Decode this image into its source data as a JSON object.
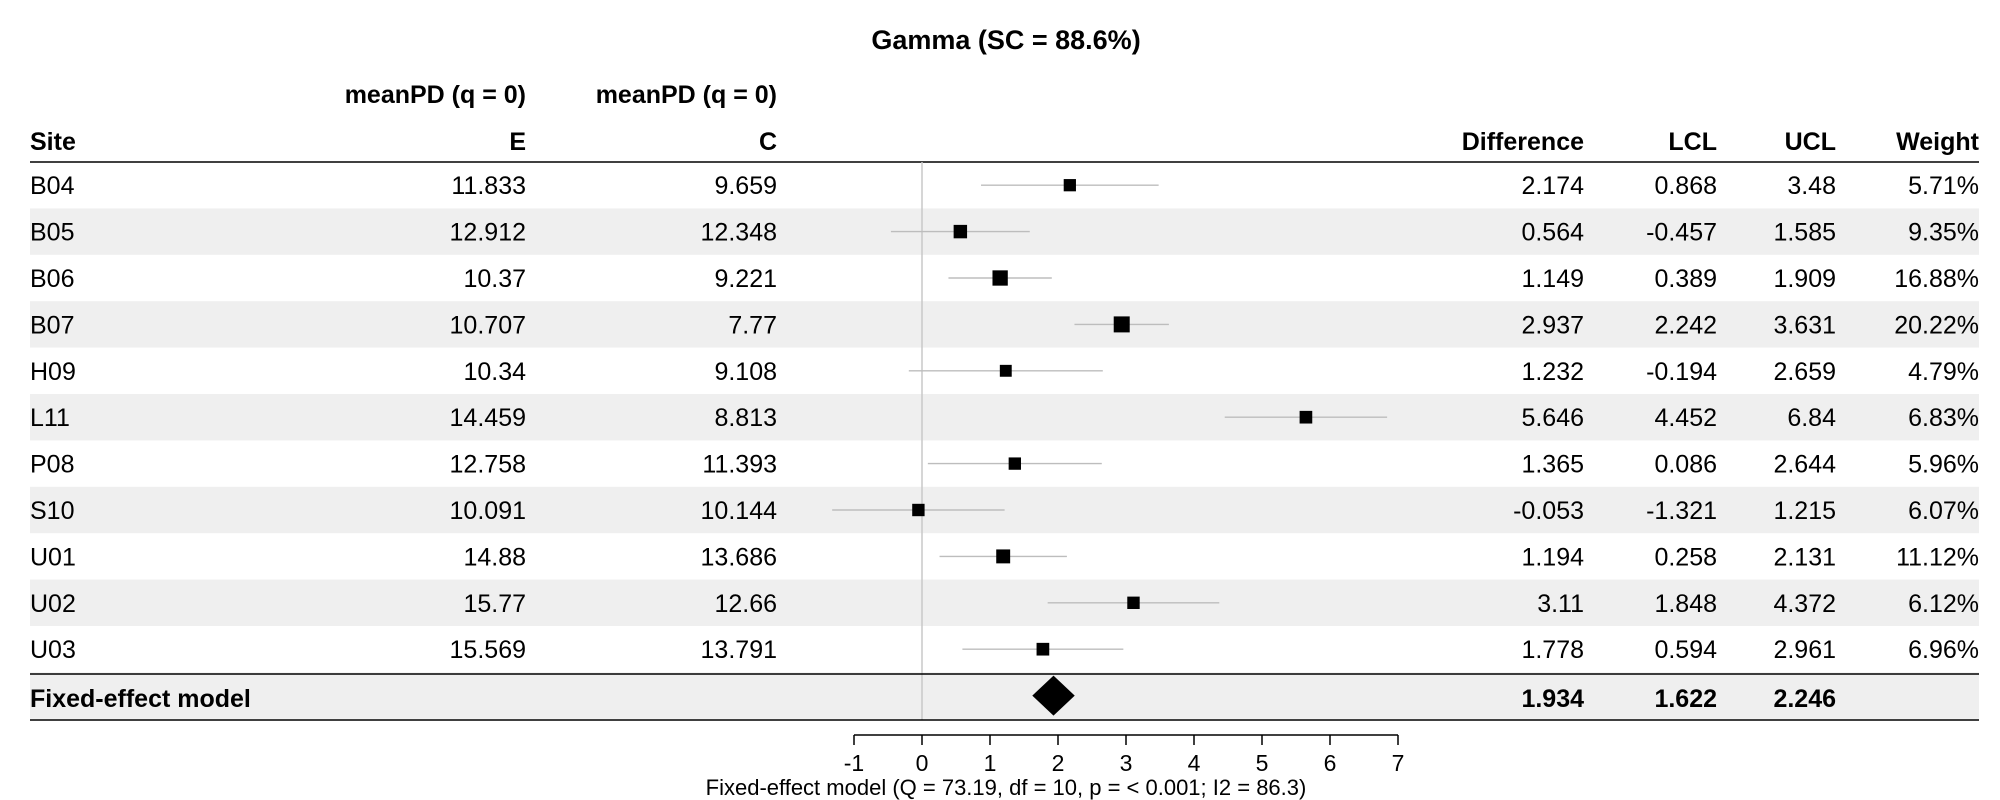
{
  "chart_data": {
    "type": "forest",
    "title": "Gamma (SC = 88.6%)",
    "column_group_headers": [
      "meanPD (q = 0)",
      "meanPD (q = 0)"
    ],
    "columns": [
      "Site",
      "E",
      "C",
      "Difference",
      "LCL",
      "UCL",
      "Weight"
    ],
    "rows": [
      {
        "site": "B04",
        "E": "11.833",
        "C": "9.659",
        "difference": "2.174",
        "lcl": "0.868",
        "ucl": "3.48",
        "weight": "5.71%"
      },
      {
        "site": "B05",
        "E": "12.912",
        "C": "12.348",
        "difference": "0.564",
        "lcl": "-0.457",
        "ucl": "1.585",
        "weight": "9.35%"
      },
      {
        "site": "B06",
        "E": "10.37",
        "C": "9.221",
        "difference": "1.149",
        "lcl": "0.389",
        "ucl": "1.909",
        "weight": "16.88%"
      },
      {
        "site": "B07",
        "E": "10.707",
        "C": "7.77",
        "difference": "2.937",
        "lcl": "2.242",
        "ucl": "3.631",
        "weight": "20.22%"
      },
      {
        "site": "H09",
        "E": "10.34",
        "C": "9.108",
        "difference": "1.232",
        "lcl": "-0.194",
        "ucl": "2.659",
        "weight": "4.79%"
      },
      {
        "site": "L11",
        "E": "14.459",
        "C": "8.813",
        "difference": "5.646",
        "lcl": "4.452",
        "ucl": "6.84",
        "weight": "6.83%"
      },
      {
        "site": "P08",
        "E": "12.758",
        "C": "11.393",
        "difference": "1.365",
        "lcl": "0.086",
        "ucl": "2.644",
        "weight": "5.96%"
      },
      {
        "site": "S10",
        "E": "10.091",
        "C": "10.144",
        "difference": "-0.053",
        "lcl": "-1.321",
        "ucl": "1.215",
        "weight": "6.07%"
      },
      {
        "site": "U01",
        "E": "14.88",
        "C": "13.686",
        "difference": "1.194",
        "lcl": "0.258",
        "ucl": "2.131",
        "weight": "11.12%"
      },
      {
        "site": "U02",
        "E": "15.77",
        "C": "12.66",
        "difference": "3.11",
        "lcl": "1.848",
        "ucl": "4.372",
        "weight": "6.12%"
      },
      {
        "site": "U03",
        "E": "15.569",
        "C": "13.791",
        "difference": "1.778",
        "lcl": "0.594",
        "ucl": "2.961",
        "weight": "6.96%"
      }
    ],
    "summary": {
      "label": "Fixed-effect model",
      "difference": "1.934",
      "lcl": "1.622",
      "ucl": "2.246"
    },
    "x_ticks": [
      -1,
      0,
      1,
      2,
      3,
      4,
      5,
      6,
      7
    ],
    "xlim": [
      -1,
      7
    ],
    "reference_line": 0,
    "footer": "Fixed-effect model (Q = 73.19, df = 10, p = < 0.001; I2 = 86.3)",
    "colors": {
      "stripe": "#efefef",
      "mark": "#000000",
      "ci_line": "#bdbdbd",
      "ref_line": "#c8c8c8"
    }
  }
}
